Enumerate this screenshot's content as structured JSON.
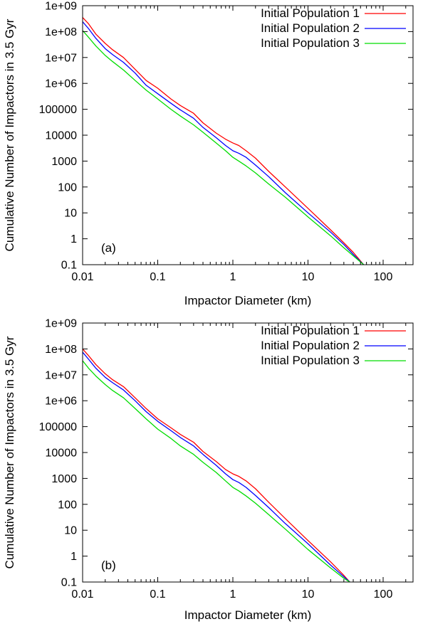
{
  "chart_data": [
    {
      "type": "line",
      "panel_label": "(a)",
      "xlabel": "Impactor Diameter (km)",
      "ylabel": "Cumulative Number of Impactors in 3.5 Gyr",
      "xscale": "log",
      "yscale": "log",
      "xlim": [
        0.01,
        250
      ],
      "ylim": [
        0.1,
        1000000000
      ],
      "xticks": [
        {
          "value": 0.01,
          "label": "0.01"
        },
        {
          "value": 0.1,
          "label": "0.1"
        },
        {
          "value": 1,
          "label": "1"
        },
        {
          "value": 10,
          "label": "10"
        },
        {
          "value": 100,
          "label": "100"
        }
      ],
      "yticks": [
        {
          "value": 0.1,
          "label": "0.1"
        },
        {
          "value": 1,
          "label": "1"
        },
        {
          "value": 10,
          "label": "10"
        },
        {
          "value": 100,
          "label": "100"
        },
        {
          "value": 1000,
          "label": "1000"
        },
        {
          "value": 10000,
          "label": "10000"
        },
        {
          "value": 100000,
          "label": "100000"
        },
        {
          "value": 1000000,
          "label": "1e+06"
        },
        {
          "value": 10000000,
          "label": "1e+07"
        },
        {
          "value": 100000000,
          "label": "1e+08"
        },
        {
          "value": 1000000000,
          "label": "1e+09"
        }
      ],
      "grid": false,
      "legend_position": "top-right",
      "series": [
        {
          "name": "Initial Population 1",
          "color": "#ff0000",
          "x": [
            0.01,
            0.012,
            0.015,
            0.02,
            0.025,
            0.035,
            0.05,
            0.07,
            0.1,
            0.15,
            0.2,
            0.3,
            0.4,
            0.6,
            0.8,
            1.0,
            1.2,
            1.5,
            2.0,
            3.0,
            5.0,
            10,
            20,
            30,
            40,
            55
          ],
          "y": [
            350000000,
            200000000,
            80000000,
            35000000,
            20000000,
            10000000,
            3500000,
            1300000,
            650000,
            250000,
            140000,
            70000,
            30000,
            12000,
            7000,
            5000,
            4000,
            2500,
            1300,
            400,
            100,
            15,
            2.2,
            0.7,
            0.3,
            0.1
          ]
        },
        {
          "name": "Initial Population 2",
          "color": "#0000ff",
          "x": [
            0.01,
            0.012,
            0.015,
            0.02,
            0.025,
            0.035,
            0.05,
            0.07,
            0.1,
            0.15,
            0.2,
            0.3,
            0.4,
            0.6,
            0.8,
            1.0,
            1.2,
            1.5,
            2.0,
            3.0,
            5.0,
            10,
            20,
            30,
            40,
            55
          ],
          "y": [
            240000000,
            130000000,
            55000000,
            22000000,
            13000000,
            6500000,
            2500000,
            850000,
            400000,
            170000,
            95000,
            45000,
            20000,
            8000,
            4000,
            2500,
            2000,
            1400,
            700,
            250,
            60,
            10,
            1.8,
            0.6,
            0.25,
            0.1
          ]
        },
        {
          "name": "Initial Population 3",
          "color": "#00dd00",
          "x": [
            0.01,
            0.012,
            0.015,
            0.02,
            0.025,
            0.035,
            0.05,
            0.07,
            0.1,
            0.15,
            0.2,
            0.3,
            0.4,
            0.6,
            0.8,
            1.0,
            1.2,
            1.5,
            2.0,
            3.0,
            5.0,
            10,
            20,
            30,
            40,
            55
          ],
          "y": [
            110000000,
            60000000,
            28000000,
            12000000,
            7000000,
            3300000,
            1300000,
            550000,
            250000,
            100000,
            55000,
            25000,
            13000,
            5000,
            2500,
            1400,
            1000,
            650,
            350,
            130,
            40,
            7,
            1.3,
            0.45,
            0.22,
            0.1
          ]
        }
      ]
    },
    {
      "type": "line",
      "panel_label": "(b)",
      "xlabel": "Impactor Diameter (km)",
      "ylabel": "Cumulative Number of Impactors in 3.5 Gyr",
      "xscale": "log",
      "yscale": "log",
      "xlim": [
        0.01,
        250
      ],
      "ylim": [
        0.1,
        1000000000
      ],
      "xticks": [
        {
          "value": 0.01,
          "label": "0.01"
        },
        {
          "value": 0.1,
          "label": "0.1"
        },
        {
          "value": 1,
          "label": "1"
        },
        {
          "value": 10,
          "label": "10"
        },
        {
          "value": 100,
          "label": "100"
        }
      ],
      "yticks": [
        {
          "value": 0.1,
          "label": "0.1"
        },
        {
          "value": 1,
          "label": "1"
        },
        {
          "value": 10,
          "label": "10"
        },
        {
          "value": 100,
          "label": "100"
        },
        {
          "value": 1000,
          "label": "1000"
        },
        {
          "value": 10000,
          "label": "10000"
        },
        {
          "value": 100000,
          "label": "100000"
        },
        {
          "value": 1000000,
          "label": "1e+06"
        },
        {
          "value": 10000000,
          "label": "1e+07"
        },
        {
          "value": 100000000,
          "label": "1e+08"
        },
        {
          "value": 1000000000,
          "label": "1e+09"
        }
      ],
      "grid": false,
      "legend_position": "top-right",
      "series": [
        {
          "name": "Initial Population 1",
          "color": "#ff0000",
          "x": [
            0.01,
            0.012,
            0.015,
            0.02,
            0.025,
            0.035,
            0.05,
            0.07,
            0.1,
            0.15,
            0.2,
            0.3,
            0.4,
            0.6,
            0.8,
            1.0,
            1.2,
            1.5,
            2.0,
            3.0,
            5.0,
            10,
            20,
            30,
            36
          ],
          "y": [
            100000000,
            55000000,
            25000000,
            11000000,
            6500000,
            3500000,
            1300000,
            500000,
            200000,
            90000,
            50000,
            25000,
            11000,
            4500,
            2200,
            1500,
            1200,
            800,
            400,
            120,
            28,
            4,
            0.6,
            0.18,
            0.1
          ]
        },
        {
          "name": "Initial Population 2",
          "color": "#0000ff",
          "x": [
            0.01,
            0.012,
            0.015,
            0.02,
            0.025,
            0.035,
            0.05,
            0.07,
            0.1,
            0.15,
            0.2,
            0.3,
            0.4,
            0.6,
            0.8,
            1.0,
            1.2,
            1.5,
            2.0,
            3.0,
            5.0,
            10,
            20,
            30,
            36
          ],
          "y": [
            75000000,
            40000000,
            18000000,
            8000000,
            5000000,
            2600000,
            1000000,
            380000,
            160000,
            70000,
            38000,
            18000,
            8500,
            3200,
            1500,
            900,
            700,
            450,
            220,
            75,
            18,
            3,
            0.45,
            0.16,
            0.1
          ]
        },
        {
          "name": "Initial Population 3",
          "color": "#00dd00",
          "x": [
            0.01,
            0.012,
            0.015,
            0.02,
            0.025,
            0.035,
            0.05,
            0.07,
            0.1,
            0.15,
            0.2,
            0.3,
            0.4,
            0.6,
            0.8,
            1.0,
            1.2,
            1.5,
            2.0,
            3.0,
            5.0,
            10,
            20,
            30,
            36
          ],
          "y": [
            35000000,
            18000000,
            9000000,
            4200000,
            2500000,
            1300000,
            500000,
            200000,
            80000,
            35000,
            18000,
            8500,
            4200,
            1700,
            800,
            450,
            330,
            210,
            110,
            40,
            11,
            1.8,
            0.35,
            0.14,
            0.1
          ]
        }
      ]
    }
  ]
}
